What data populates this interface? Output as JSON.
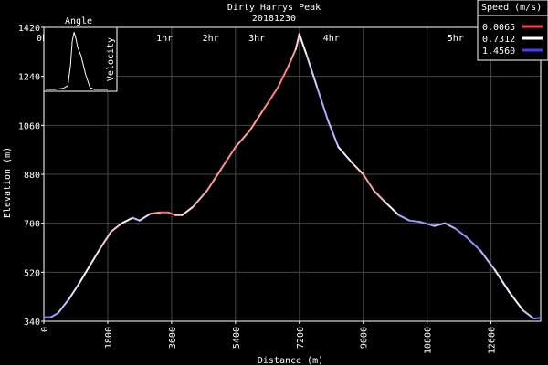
{
  "chart_data": {
    "type": "line",
    "title": "Dirty Harrys Peak",
    "subtitle": "20181230",
    "xlabel": "Distance (m)",
    "ylabel": "Elevation (m)",
    "xlim": [
      0,
      14000
    ],
    "ylim": [
      340,
      1420
    ],
    "x_ticks": [
      "0",
      "1800",
      "3600",
      "5400",
      "7200",
      "9000",
      "10800",
      "12600"
    ],
    "x_tick_values": [
      0,
      1800,
      3600,
      5400,
      7200,
      9000,
      10800,
      12600
    ],
    "y_ticks": [
      "340",
      "520",
      "700",
      "880",
      "1060",
      "1240",
      "1420"
    ],
    "y_tick_values": [
      340,
      520,
      700,
      880,
      1060,
      1240,
      1420
    ],
    "time_ticks": [
      "0h",
      "1hr",
      "2hr",
      "3hr",
      "4hr",
      "5hr"
    ],
    "time_tick_distances": [
      0,
      3400,
      4700,
      6000,
      8100,
      11600
    ],
    "grid": true,
    "legend": {
      "title": "Speed (m/s)",
      "position": "top-right",
      "entries": [
        {
          "label": "0.0065",
          "color": "#ff4040"
        },
        {
          "label": "0.7312",
          "color": "#ffffff"
        },
        {
          "label": "1.4560",
          "color": "#4040ff"
        }
      ]
    },
    "series": [
      {
        "x": [
          0,
          200,
          400,
          700,
          1000,
          1300,
          1600,
          1900,
          2200,
          2500,
          2700,
          3000,
          3300,
          3500,
          3700,
          3900,
          4200,
          4600,
          5000,
          5400,
          5800,
          6200,
          6600,
          6900,
          7100,
          7200,
          7400,
          7700,
          8000,
          8300,
          8700,
          9000,
          9300,
          9600,
          10000,
          10300,
          10600,
          11000,
          11300,
          11600,
          11900,
          12300,
          12700,
          13100,
          13500,
          13800,
          14000
        ],
        "y": [
          355,
          355,
          370,
          420,
          480,
          545,
          610,
          670,
          700,
          720,
          710,
          735,
          740,
          740,
          730,
          730,
          760,
          820,
          900,
          980,
          1040,
          1120,
          1200,
          1280,
          1340,
          1395,
          1320,
          1200,
          1080,
          980,
          920,
          880,
          820,
          780,
          730,
          710,
          705,
          690,
          700,
          680,
          650,
          600,
          530,
          450,
          380,
          350,
          352
        ],
        "speed": [
          1.3,
          1.2,
          1.0,
          0.9,
          0.8,
          0.7,
          0.6,
          0.5,
          0.6,
          0.9,
          1.1,
          0.6,
          0.2,
          0.1,
          0.4,
          0.7,
          0.5,
          0.4,
          0.3,
          0.3,
          0.4,
          0.3,
          0.2,
          0.3,
          0.4,
          0.7,
          0.8,
          1.0,
          1.1,
          0.9,
          0.7,
          0.4,
          0.3,
          0.6,
          1.0,
          1.1,
          1.2,
          1.0,
          0.9,
          1.1,
          1.2,
          1.1,
          0.9,
          0.7,
          0.8,
          1.1,
          1.2
        ]
      }
    ],
    "inset": {
      "title": "Angle",
      "ylabel": "Velocity",
      "x": [
        0,
        10,
        20,
        25,
        28,
        30,
        32,
        34,
        36,
        40,
        45,
        50,
        55,
        70
      ],
      "y": [
        0,
        0,
        0.02,
        0.06,
        0.4,
        0.8,
        0.95,
        0.85,
        0.7,
        0.55,
        0.25,
        0.03,
        0,
        0
      ]
    }
  }
}
